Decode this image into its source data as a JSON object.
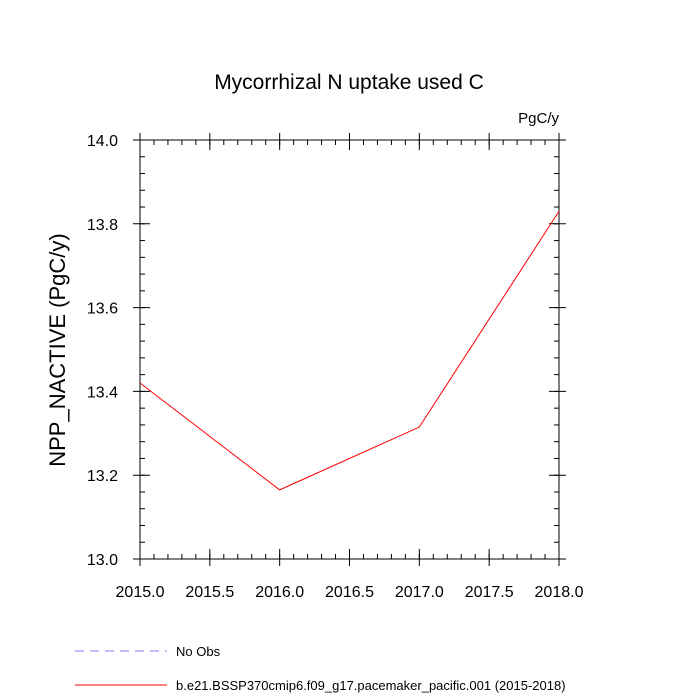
{
  "chart_data": {
    "type": "line",
    "title": "Mycorrhizal N uptake used C",
    "units_label": "PgC/y",
    "xlabel": "",
    "ylabel": "NPP_NACTIVE  (PgC/y)",
    "xlim": [
      2015.0,
      2018.0
    ],
    "ylim": [
      13.0,
      14.0
    ],
    "x_ticks": [
      2015.0,
      2015.5,
      2016.0,
      2016.5,
      2017.0,
      2017.5,
      2018.0
    ],
    "x_tick_labels": [
      "2015.0",
      "2015.5",
      "2016.0",
      "2016.5",
      "2017.0",
      "2017.5",
      "2018.0"
    ],
    "y_ticks": [
      13.0,
      13.2,
      13.4,
      13.6,
      13.8,
      14.0
    ],
    "y_tick_labels": [
      "13.0",
      "13.2",
      "13.4",
      "13.6",
      "13.8",
      "14.0"
    ],
    "x_minor_step": 0.1,
    "y_minor_step": 0.04,
    "grid": false,
    "legend_position": "bottom",
    "series": [
      {
        "name": "b.e21.BSSP370cmip6.f09_g17.pacemaker_pacific.001 (2015-2018)",
        "color": "#ff0000",
        "style": "solid",
        "x": [
          2015.0,
          2016.0,
          2017.0,
          2018.0
        ],
        "values": [
          13.42,
          13.165,
          13.315,
          13.83
        ]
      }
    ],
    "legend": [
      {
        "label": "No Obs",
        "color": "#7f7fff",
        "style": "dashed"
      },
      {
        "label": "b.e21.BSSP370cmip6.f09_g17.pacemaker_pacific.001 (2015-2018)",
        "color": "#ff0000",
        "style": "solid"
      }
    ]
  }
}
